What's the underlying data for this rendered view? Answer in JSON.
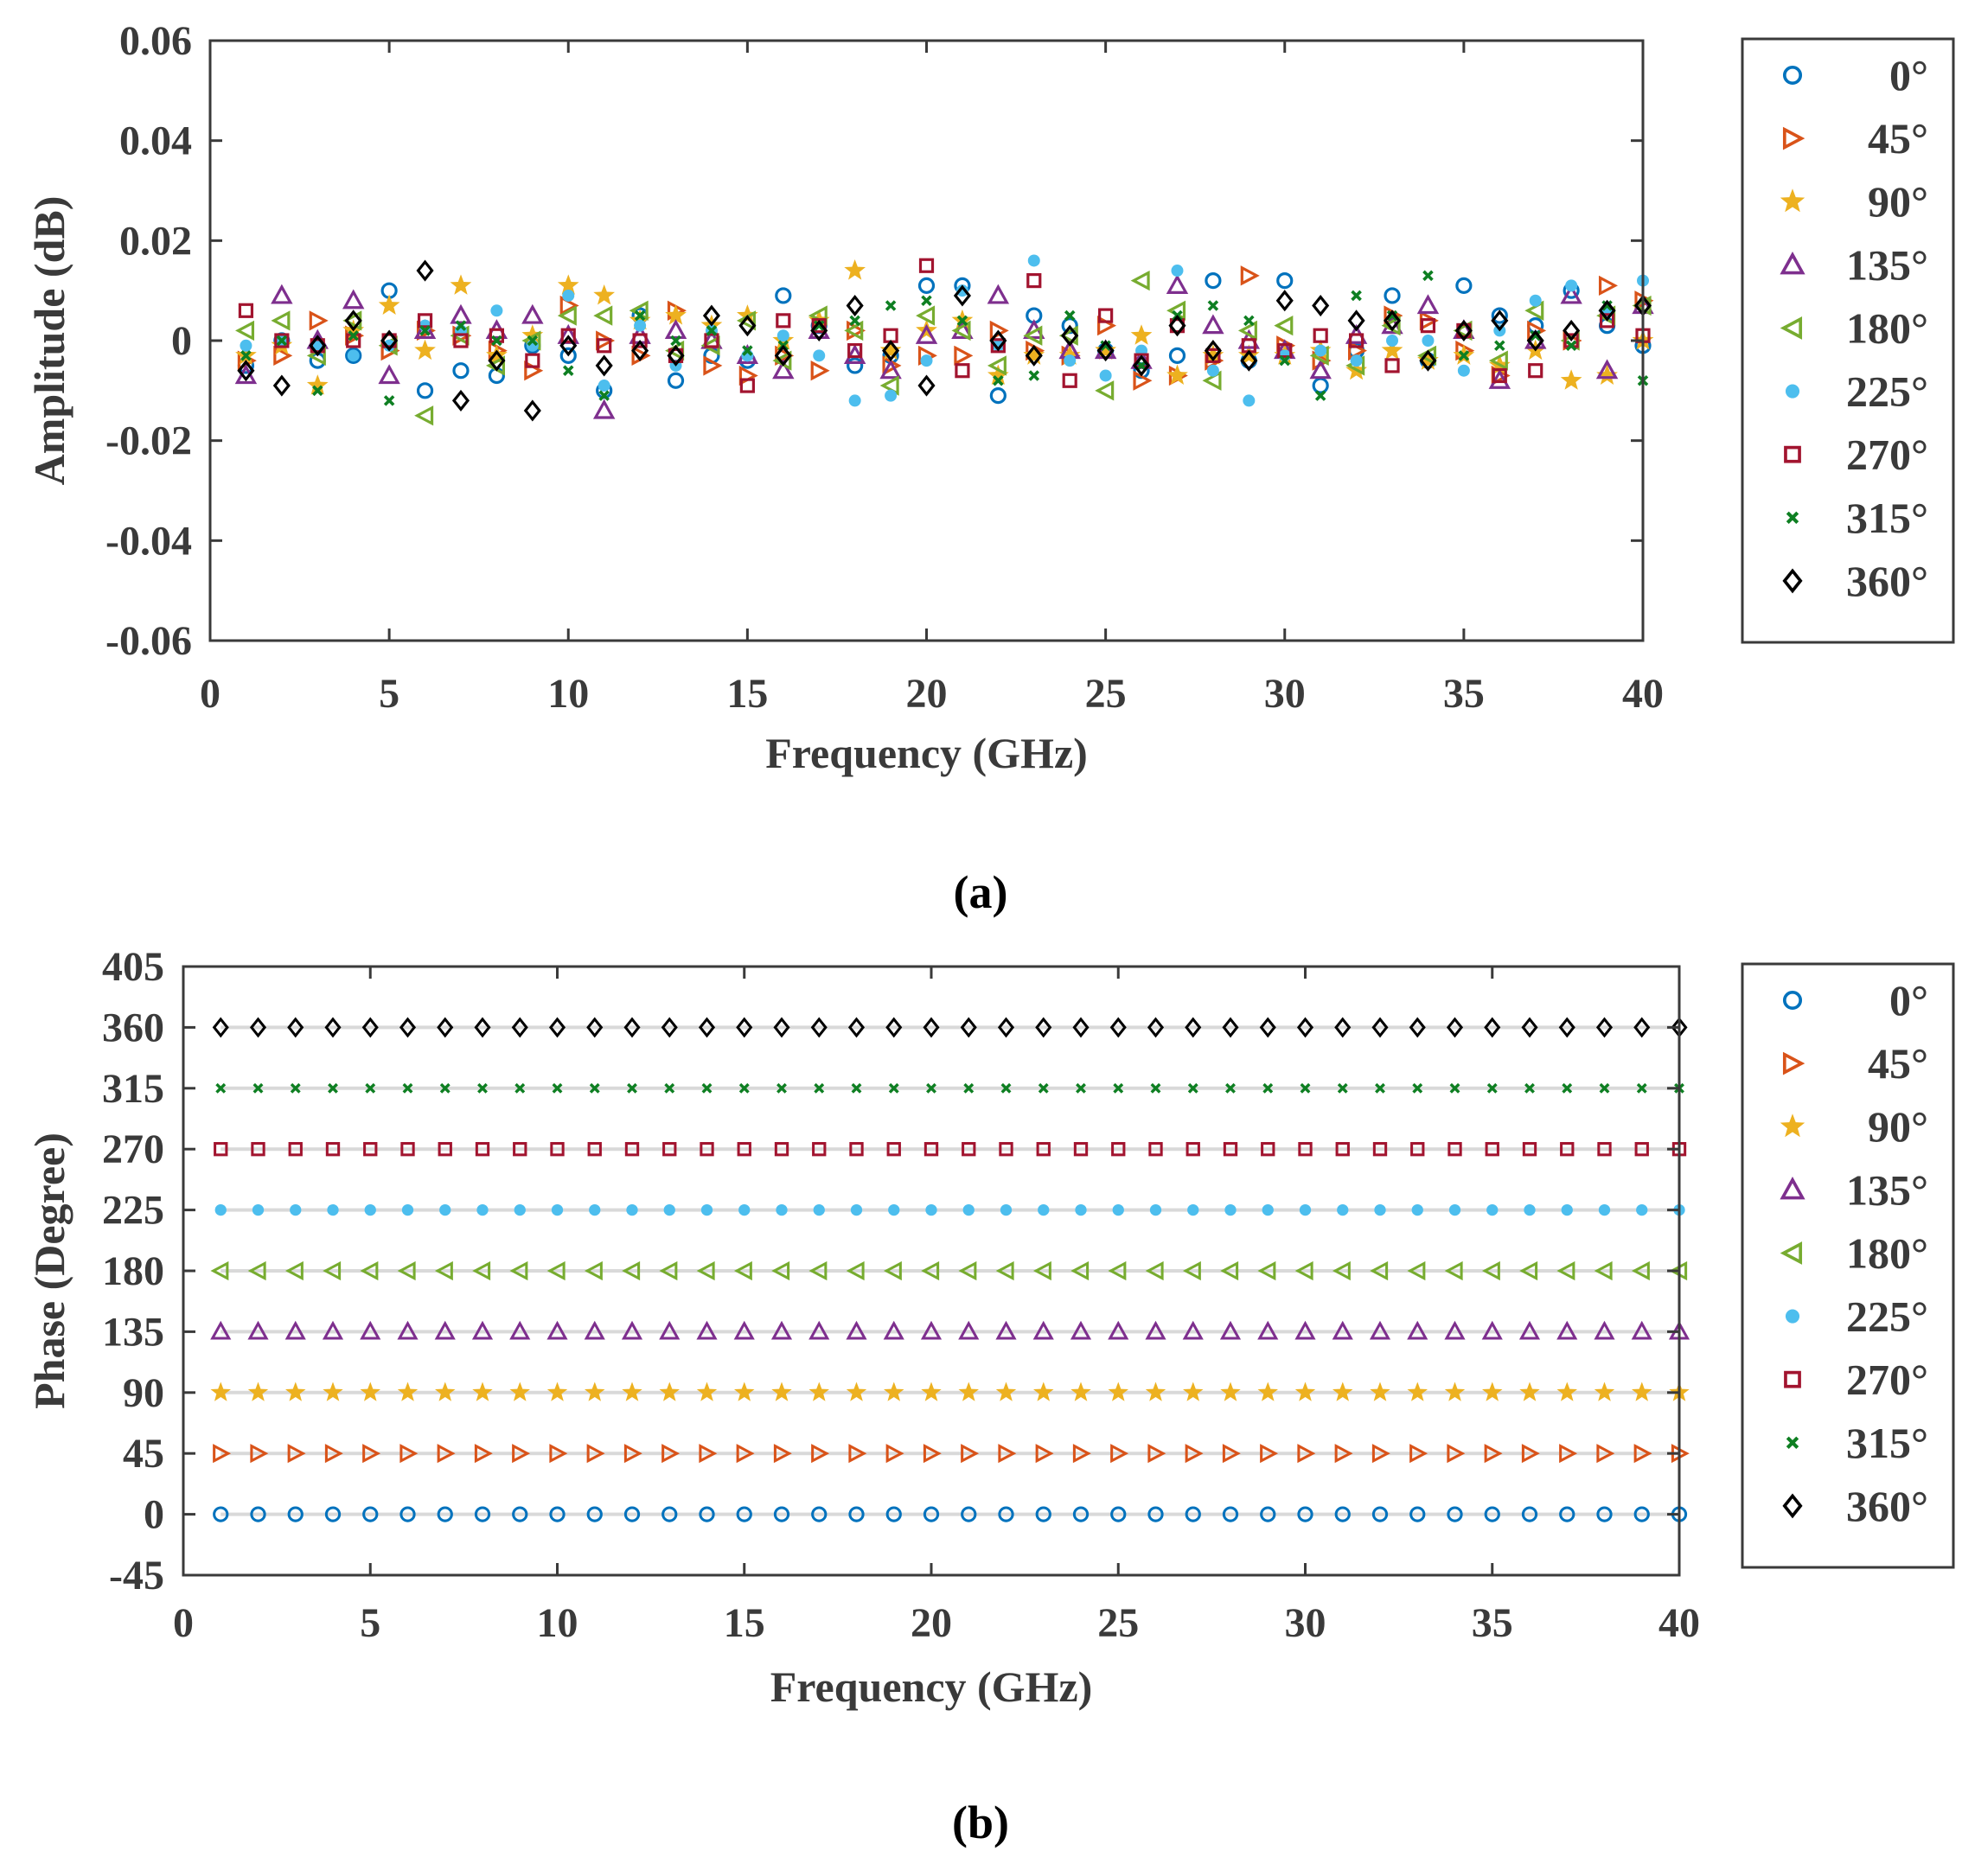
{
  "series_styles": [
    {
      "name": "0°",
      "marker": "circle-open",
      "color": "#0072BD"
    },
    {
      "name": "45°",
      "marker": "triangle-right-open",
      "color": "#D95319"
    },
    {
      "name": "90°",
      "marker": "star-filled",
      "color": "#EDB120"
    },
    {
      "name": "135°",
      "marker": "triangle-up-open",
      "color": "#7E2F8E"
    },
    {
      "name": "180°",
      "marker": "triangle-left-open",
      "color": "#77AC30"
    },
    {
      "name": "225°",
      "marker": "circle-filled",
      "color": "#4DBEEE"
    },
    {
      "name": "270°",
      "marker": "square-open",
      "color": "#A2142F"
    },
    {
      "name": "315°",
      "marker": "x-cross",
      "color": "#0E7F22"
    },
    {
      "name": "360°",
      "marker": "diamond-open",
      "color": "#000000"
    }
  ],
  "chart_data": [
    {
      "id": "a",
      "panel_label": "(a)",
      "type": "scatter",
      "title": "",
      "xlabel": "Frequency (GHz)",
      "ylabel": "Amplitude (dB)",
      "xlim": [
        0,
        40
      ],
      "ylim": [
        -0.06,
        0.06
      ],
      "x_ticks": [
        0,
        5,
        10,
        15,
        20,
        25,
        30,
        35,
        40
      ],
      "y_ticks": [
        -0.06,
        -0.04,
        -0.02,
        0,
        0.02,
        0.04,
        0.06
      ],
      "x_tick_labels": [
        "0",
        "5",
        "10",
        "15",
        "20",
        "25",
        "30",
        "35",
        "40"
      ],
      "y_tick_labels": [
        "-0.06",
        "-0.04",
        "-0.02",
        "0",
        "0.02",
        "0.04",
        "0.06"
      ],
      "legend_position": "outside-right",
      "x": [
        1,
        2,
        3,
        4,
        5,
        6,
        7,
        8,
        9,
        10,
        11,
        12,
        13,
        14,
        15,
        16,
        17,
        18,
        19,
        20,
        21,
        22,
        23,
        24,
        25,
        26,
        27,
        28,
        29,
        30,
        31,
        32,
        33,
        34,
        35,
        36,
        37,
        38,
        39,
        40
      ],
      "series": [
        {
          "name": "0°",
          "values": [
            -0.005,
            0.0,
            -0.004,
            -0.003,
            0.01,
            -0.01,
            -0.006,
            -0.007,
            -0.001,
            -0.003,
            -0.01,
            0.005,
            -0.008,
            -0.003,
            -0.004,
            0.009,
            0.003,
            -0.005,
            -0.003,
            0.011,
            0.011,
            -0.011,
            0.005,
            0.003,
            -0.002,
            -0.006,
            -0.003,
            0.012,
            -0.004,
            0.012,
            -0.009,
            -0.002,
            0.009,
            -0.004,
            0.011,
            0.005,
            0.003,
            0.01,
            0.003,
            -0.001
          ]
        },
        {
          "name": "45°",
          "values": [
            -0.004,
            -0.003,
            0.004,
            0.001,
            -0.002,
            0.002,
            0.001,
            -0.002,
            -0.006,
            0.007,
            0.0,
            -0.003,
            0.006,
            -0.005,
            -0.007,
            -0.003,
            -0.006,
            0.002,
            -0.005,
            -0.003,
            -0.003,
            0.002,
            -0.002,
            -0.003,
            0.003,
            -0.008,
            -0.007,
            -0.004,
            0.013,
            -0.001,
            -0.004,
            -0.002,
            0.005,
            0.004,
            -0.002,
            -0.007,
            0.002,
            0.0,
            0.011,
            0.008
          ]
        },
        {
          "name": "90°",
          "values": [
            -0.003,
            -0.001,
            -0.009,
            0.002,
            0.007,
            -0.002,
            0.011,
            -0.003,
            0.001,
            0.011,
            0.009,
            0.004,
            0.005,
            0.003,
            0.005,
            0.0,
            0.004,
            0.014,
            -0.002,
            0.002,
            0.004,
            -0.007,
            -0.003,
            -0.003,
            -0.002,
            0.001,
            -0.007,
            -0.003,
            -0.003,
            -0.003,
            -0.002,
            -0.006,
            -0.002,
            -0.004,
            -0.003,
            -0.005,
            -0.002,
            -0.008,
            -0.007,
            0.0
          ]
        },
        {
          "name": "135°",
          "values": [
            -0.007,
            0.009,
            0.0,
            0.008,
            -0.007,
            0.002,
            0.005,
            0.002,
            0.005,
            0.001,
            -0.014,
            0.001,
            0.002,
            0.0,
            -0.003,
            -0.006,
            0.002,
            -0.003,
            -0.006,
            0.001,
            0.002,
            0.009,
            0.002,
            -0.002,
            -0.002,
            -0.004,
            0.011,
            0.003,
            0.0,
            -0.002,
            -0.006,
            0.001,
            0.003,
            0.007,
            0.002,
            -0.008,
            0.0,
            0.009,
            -0.006,
            0.007
          ]
        },
        {
          "name": "180°",
          "values": [
            0.002,
            0.004,
            -0.003,
            0.004,
            -0.001,
            -0.015,
            0.001,
            -0.005,
            0.0,
            0.005,
            0.005,
            0.006,
            -0.002,
            -0.001,
            0.004,
            -0.004,
            0.005,
            0.002,
            -0.009,
            0.005,
            0.002,
            -0.005,
            0.001,
            0.001,
            -0.01,
            0.012,
            0.006,
            -0.008,
            0.002,
            0.003,
            -0.003,
            -0.005,
            0.003,
            -0.003,
            0.002,
            -0.004,
            0.006,
            0.0,
            0.005,
            0.007
          ]
        },
        {
          "name": "225°",
          "values": [
            -0.001,
            0.0,
            -0.001,
            -0.003,
            -0.001,
            0.003,
            0.002,
            0.006,
            -0.001,
            0.009,
            -0.009,
            0.003,
            -0.005,
            0.002,
            -0.003,
            0.001,
            -0.003,
            -0.012,
            -0.011,
            -0.004,
            0.01,
            -0.001,
            0.016,
            -0.004,
            -0.007,
            -0.002,
            0.014,
            -0.006,
            -0.012,
            -0.003,
            -0.002,
            -0.004,
            0.0,
            0.0,
            -0.006,
            0.002,
            0.008,
            0.011,
            0.006,
            0.012
          ]
        },
        {
          "name": "270°",
          "values": [
            0.006,
            0.0,
            -0.001,
            0.0,
            0.0,
            0.004,
            0.0,
            0.001,
            -0.004,
            0.001,
            -0.001,
            0.0,
            -0.003,
            0.0,
            -0.009,
            0.004,
            0.003,
            -0.002,
            0.001,
            0.015,
            -0.006,
            -0.001,
            0.012,
            -0.008,
            0.005,
            -0.004,
            0.003,
            -0.003,
            -0.001,
            -0.002,
            0.001,
            0.0,
            -0.005,
            0.003,
            0.002,
            -0.007,
            -0.006,
            0.0,
            0.004,
            0.001
          ]
        },
        {
          "name": "315°",
          "values": [
            -0.003,
            0.0,
            -0.01,
            0.001,
            -0.012,
            0.002,
            0.003,
            0.0,
            0.0,
            -0.006,
            -0.011,
            0.005,
            0.0,
            0.002,
            -0.002,
            -0.001,
            0.003,
            0.004,
            0.007,
            0.008,
            0.004,
            -0.008,
            -0.007,
            0.005,
            -0.001,
            -0.005,
            0.005,
            0.007,
            0.004,
            -0.004,
            -0.011,
            0.009,
            0.005,
            0.013,
            -0.003,
            -0.001,
            0.001,
            -0.001,
            0.007,
            -0.008
          ]
        },
        {
          "name": "360°",
          "values": [
            -0.006,
            -0.009,
            -0.001,
            0.004,
            0.0,
            0.014,
            -0.012,
            -0.004,
            -0.014,
            -0.001,
            -0.005,
            -0.002,
            -0.003,
            0.005,
            0.003,
            -0.003,
            0.002,
            0.007,
            -0.002,
            -0.009,
            0.009,
            0.0,
            -0.003,
            0.001,
            -0.002,
            -0.005,
            0.003,
            -0.002,
            -0.004,
            0.008,
            0.007,
            0.004,
            0.004,
            -0.004,
            0.002,
            0.004,
            0.0,
            0.002,
            0.006,
            0.007
          ]
        }
      ]
    },
    {
      "id": "b",
      "panel_label": "(b)",
      "type": "scatter",
      "title": "",
      "xlabel": "Frequency (GHz)",
      "ylabel": "Phase (Degree)",
      "xlim": [
        0,
        40
      ],
      "ylim": [
        -45,
        405
      ],
      "x_ticks": [
        0,
        5,
        10,
        15,
        20,
        25,
        30,
        35,
        40
      ],
      "y_ticks": [
        -45,
        0,
        45,
        90,
        135,
        180,
        225,
        270,
        315,
        360,
        405
      ],
      "x_tick_labels": [
        "0",
        "5",
        "10",
        "15",
        "20",
        "25",
        "30",
        "35",
        "40"
      ],
      "y_tick_labels": [
        "-45",
        "0",
        "45",
        "90",
        "135",
        "180",
        "225",
        "270",
        "315",
        "360",
        "405"
      ],
      "legend_position": "outside-right",
      "x": [
        1,
        2,
        3,
        4,
        5,
        6,
        7,
        8,
        9,
        10,
        11,
        12,
        13,
        14,
        15,
        16,
        17,
        18,
        19,
        20,
        21,
        22,
        23,
        24,
        25,
        26,
        27,
        28,
        29,
        30,
        31,
        32,
        33,
        34,
        35,
        36,
        37,
        38,
        39,
        40
      ],
      "series": [
        {
          "name": "0°",
          "constant": 0
        },
        {
          "name": "45°",
          "constant": 45
        },
        {
          "name": "90°",
          "constant": 90
        },
        {
          "name": "135°",
          "constant": 135
        },
        {
          "name": "180°",
          "constant": 180
        },
        {
          "name": "225°",
          "constant": 225
        },
        {
          "name": "270°",
          "constant": 270
        },
        {
          "name": "315°",
          "constant": 315
        },
        {
          "name": "360°",
          "constant": 360
        }
      ]
    }
  ]
}
